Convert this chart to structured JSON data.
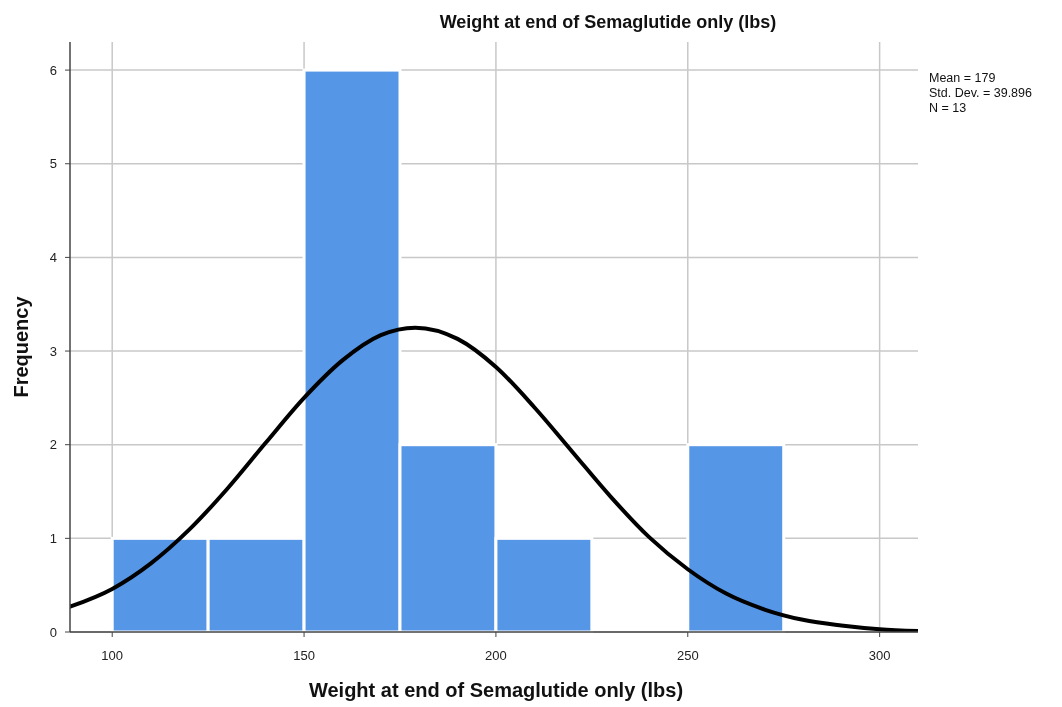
{
  "chart_data": {
    "type": "histogram",
    "title": "Weight at end of Semaglutide only (lbs)",
    "xlabel": "Weight at end of Semaglutide only (lbs)",
    "ylabel": "Frequency",
    "bins": [
      100,
      125,
      150,
      175,
      200,
      225,
      250,
      275
    ],
    "values": [
      1,
      1,
      6,
      2,
      1,
      0,
      2
    ],
    "color": "#5596e6",
    "xlim": [
      89,
      310
    ],
    "xticks": [
      100,
      150,
      200,
      250,
      300
    ],
    "ylim": [
      0,
      6.3
    ],
    "yticks": [
      0,
      1,
      2,
      3,
      4,
      5,
      6
    ],
    "grid": true,
    "series": [
      {
        "type": "line",
        "color": "#000000",
        "marker": "none",
        "line_style": "solid",
        "x": [
          89,
          100,
          110,
          120,
          130,
          140,
          150,
          160,
          170,
          179,
          190,
          200,
          210,
          220,
          230,
          240,
          250,
          260,
          270,
          280,
          290,
          300,
          310
        ],
        "values": [
          0.27,
          0.46,
          0.73,
          1.09,
          1.53,
          2.02,
          2.5,
          2.9,
          3.17,
          3.25,
          3.13,
          2.83,
          2.4,
          1.92,
          1.44,
          1.01,
          0.67,
          0.41,
          0.24,
          0.13,
          0.07,
          0.03,
          0.01
        ]
      }
    ],
    "annotations": [
      "Mean = 179",
      "Std. Dev. = 39.896",
      "N = 13"
    ]
  }
}
